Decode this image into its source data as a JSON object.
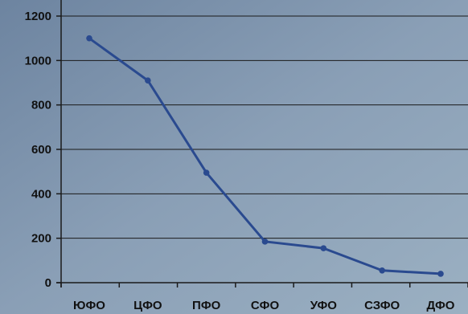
{
  "chart_data": {
    "type": "line",
    "categories": [
      "ЮФО",
      "ЦФО",
      "ПФО",
      "СФО",
      "УФО",
      "СЗФО",
      "ДФО"
    ],
    "series": [
      {
        "values": [
          1100,
          910,
          495,
          185,
          155,
          55,
          40
        ],
        "color": "#2a4a8f"
      }
    ],
    "ylim": [
      0,
      1200
    ],
    "yticks": [
      0,
      200,
      400,
      600,
      800,
      1000,
      1200
    ],
    "grid": true,
    "legend": "none"
  },
  "colors": {
    "background": "#7f95ad",
    "line": "#2a4a8f",
    "grid": "#1a1a1a"
  }
}
